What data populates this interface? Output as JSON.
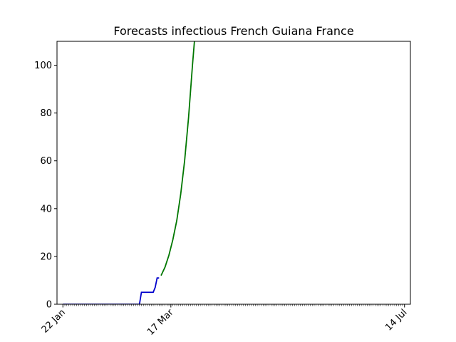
{
  "chart_data": {
    "type": "line",
    "title": "Forecasts infectious French Guiana France",
    "xlabel": "",
    "ylabel": "",
    "x_axis": {
      "type": "date",
      "start": "2020-01-22",
      "end": "2020-07-14",
      "labeled_ticks": [
        {
          "date": "2020-01-22",
          "label": "22 Jan"
        },
        {
          "date": "2020-03-17",
          "label": "17 Mar"
        },
        {
          "date": "2020-07-14",
          "label": "14 Jul"
        }
      ],
      "minor_ticks": "daily",
      "label_rotation_deg": 45
    },
    "ylim": [
      0,
      110
    ],
    "yticks": [
      0,
      20,
      40,
      60,
      80,
      100
    ],
    "grid": false,
    "legend": "none",
    "series": [
      {
        "color": "#0000cc",
        "points": [
          [
            "2020-01-22",
            0
          ],
          [
            "2020-02-29",
            0
          ],
          [
            "2020-03-01",
            0
          ],
          [
            "2020-03-02",
            5
          ],
          [
            "2020-03-08",
            5
          ],
          [
            "2020-03-09",
            7
          ],
          [
            "2020-03-10",
            11
          ],
          [
            "2020-03-11",
            11
          ]
        ]
      },
      {
        "color": "#007700",
        "points": [
          [
            "2020-03-12",
            12
          ],
          [
            "2020-03-14",
            15.5
          ],
          [
            "2020-03-16",
            20.5
          ],
          [
            "2020-03-18",
            27
          ],
          [
            "2020-03-20",
            35
          ],
          [
            "2020-03-22",
            46
          ],
          [
            "2020-03-24",
            60
          ],
          [
            "2020-03-26",
            78
          ],
          [
            "2020-03-28",
            100
          ],
          [
            "2020-03-29",
            110
          ]
        ]
      }
    ]
  }
}
